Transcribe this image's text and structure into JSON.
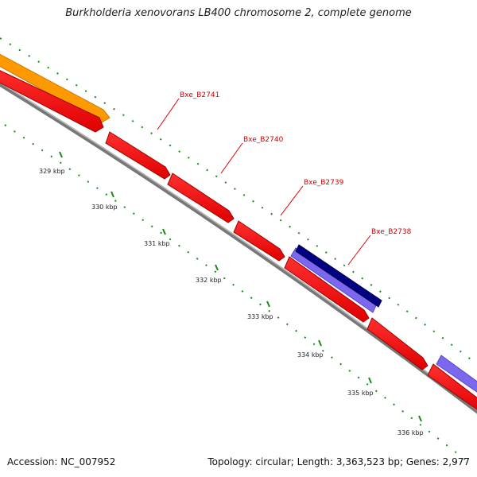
{
  "title": "Burkholderia xenovorans LB400 chromosome 2, complete genome",
  "footer": {
    "accession": "Accession: NC_007952",
    "info": "Topology: circular; Length: 3,363,523 bp; Genes: 2,977"
  },
  "ticks": [
    "329 kbp",
    "330 kbp",
    "331 kbp",
    "332 kbp",
    "333 kbp",
    "334 kbp",
    "335 kbp",
    "336 kbp"
  ],
  "gene_labels": [
    "Bxe_B2741",
    "Bxe_B2740",
    "Bxe_B2739",
    "Bxe_B2738"
  ],
  "colors": {
    "cds": "#ff0000",
    "cds_dark": "#b80000",
    "backbone": "#888888",
    "orange_feature": "#ff9900",
    "purple_feature": "#7b68ee",
    "navy_feature": "#000080",
    "tick": "#1a8a1a",
    "label_line": "#e00000"
  }
}
